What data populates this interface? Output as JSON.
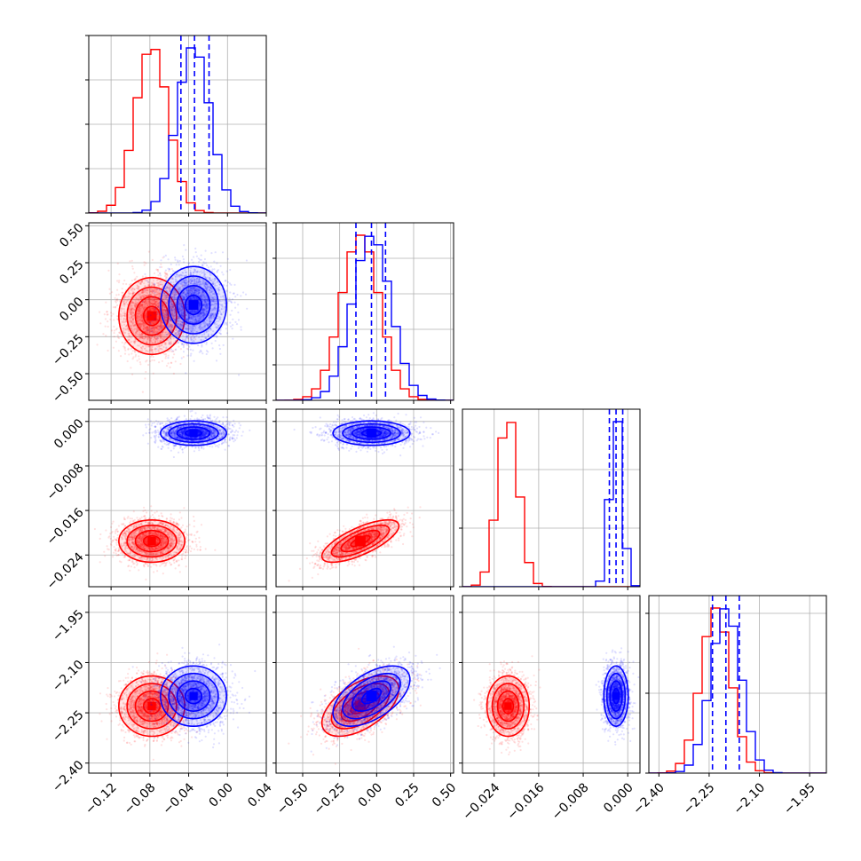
{
  "colors": {
    "red": "#ff0000",
    "blue": "#0000ff",
    "grid": "#b0b0b0",
    "axis": "#000000"
  },
  "chart_data": {
    "type": "corner",
    "grid": true,
    "parameters": [
      {
        "range": [
          -0.143,
          0.04
        ],
        "ticks": [
          -0.12,
          -0.08,
          -0.04,
          0.0,
          0.04
        ],
        "tick_labels": [
          "−0.12",
          "−0.08",
          "−0.04",
          "0.00",
          "0.04"
        ],
        "quantiles": [
          -0.048,
          -0.034,
          -0.019
        ]
      },
      {
        "range": [
          -0.68,
          0.52
        ],
        "ticks": [
          -0.5,
          -0.25,
          0.0,
          0.25,
          0.5
        ],
        "tick_labels": [
          "−0.50",
          "−0.25",
          "0.00",
          "0.25",
          "0.50"
        ],
        "quantiles": [
          -0.14,
          -0.035,
          0.06
        ]
      },
      {
        "range": [
          -0.0297,
          0.0022
        ],
        "ticks": [
          -0.024,
          -0.016,
          -0.008,
          0.0
        ],
        "tick_labels": [
          "−0.024",
          "−0.016",
          "−0.008",
          "0.000"
        ],
        "quantiles": [
          -0.0033,
          -0.0021,
          -0.0009
        ]
      },
      {
        "range": [
          -2.43,
          -1.9
        ],
        "ticks": [
          -2.4,
          -2.25,
          -2.1,
          -1.95
        ],
        "tick_labels": [
          "−2.40",
          "−2.25",
          "−2.10",
          "−1.95"
        ],
        "quantiles": [
          -2.24,
          -2.2,
          -2.16
        ]
      }
    ],
    "series": [
      {
        "color": "red",
        "means": [
          -0.078,
          -0.11,
          -0.0215,
          -2.23
        ],
        "stds": [
          0.017,
          0.13,
          0.0019,
          0.045
        ],
        "correlations": {
          "0-1": 0.0,
          "0-2": 0.0,
          "0-3": 0.0,
          "1-2": 0.72,
          "1-3": 0.55,
          "2-3": 0.0
        }
      },
      {
        "color": "blue",
        "means": [
          -0.035,
          -0.035,
          -0.0021,
          -2.2
        ],
        "stds": [
          0.017,
          0.13,
          0.0011,
          0.045
        ],
        "correlations": {
          "0-1": 0.0,
          "0-2": 0.0,
          "0-3": 0.0,
          "1-2": 0.0,
          "1-3": 0.55,
          "2-3": 0.0
        }
      }
    ],
    "diag_yticks": [
      [
        0.0,
        0.25,
        0.5,
        0.75,
        1.0
      ],
      [
        0.0,
        0.2,
        0.4,
        0.6,
        0.8,
        1.0
      ],
      [
        0.0,
        0.33,
        0.66
      ],
      [
        0.0,
        0.45,
        0.9
      ]
    ]
  }
}
